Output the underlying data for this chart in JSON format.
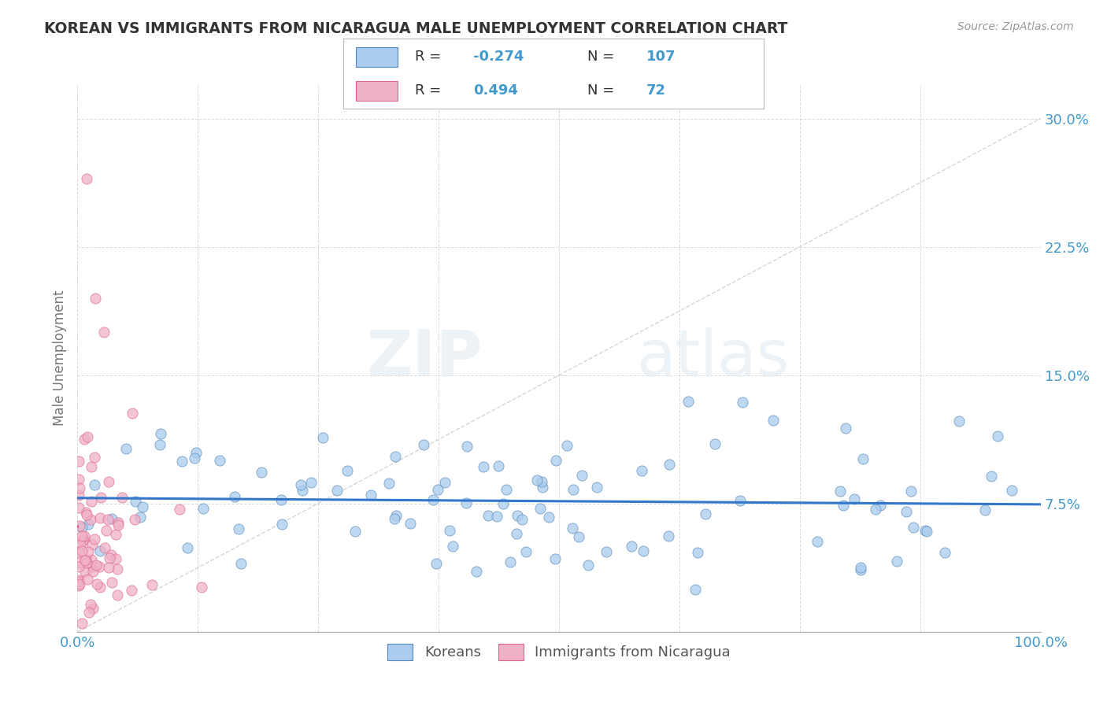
{
  "title": "KOREAN VS IMMIGRANTS FROM NICARAGUA MALE UNEMPLOYMENT CORRELATION CHART",
  "source": "Source: ZipAtlas.com",
  "ylabel": "Male Unemployment",
  "xlim": [
    0.0,
    1.0
  ],
  "ylim": [
    0.0,
    0.32
  ],
  "yticks": [
    0.0,
    0.075,
    0.15,
    0.225,
    0.3
  ],
  "yticklabels": [
    "",
    "7.5%",
    "15.0%",
    "22.5%",
    "30.0%"
  ],
  "watermark_zip": "ZIP",
  "watermark_atlas": "atlas",
  "korean_color": "#aaccee",
  "nicaragua_color": "#f0b0c8",
  "korean_edge_color": "#5588bb",
  "nicaragua_edge_color": "#dd6688",
  "korean_line_color": "#3377cc",
  "nicaragua_line_color": "#ee4477",
  "trend_line_color": "#cccccc",
  "background_color": "#ffffff",
  "title_color": "#333333",
  "axis_label_color": "#4499cc",
  "source_color": "#999999"
}
